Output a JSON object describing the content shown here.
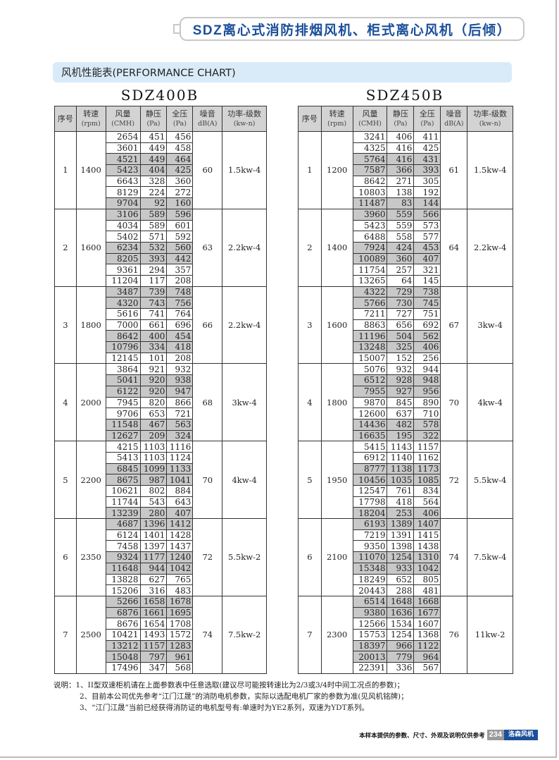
{
  "header": {
    "title": "SDZ离心式消防排烟风机、柜式离心风机（后倾）"
  },
  "section": {
    "title": "风机性能表(PERFORMANCE CHART)"
  },
  "columns": [
    {
      "label": "序号",
      "unit": ""
    },
    {
      "label": "转速",
      "unit": "(rpm)"
    },
    {
      "label": "风量",
      "unit": "(CMH)"
    },
    {
      "label": "静压",
      "unit": "(Pa)"
    },
    {
      "label": "全压",
      "unit": "(Pa)"
    },
    {
      "label": "噪音",
      "unit": "dB(A)"
    },
    {
      "label": "功率-级数",
      "unit": "(kw-n)"
    }
  ],
  "highlight_color": "#c8c8c8",
  "tables": [
    {
      "model": "SDZ400B",
      "groups": [
        {
          "no": "1",
          "rpm": "1400",
          "noise": "60",
          "power": "1.5kw-4",
          "highlighted_rows": [
            2,
            3,
            6
          ],
          "rows": [
            [
              "2654",
              "451",
              "456"
            ],
            [
              "3601",
              "449",
              "458"
            ],
            [
              "4521",
              "449",
              "464"
            ],
            [
              "5423",
              "404",
              "425"
            ],
            [
              "6643",
              "328",
              "360"
            ],
            [
              "8129",
              "224",
              "272"
            ],
            [
              "9704",
              "92",
              "160"
            ]
          ]
        },
        {
          "no": "2",
          "rpm": "1600",
          "noise": "63",
          "power": "2.2kw-4",
          "highlighted_rows": [
            0,
            3,
            4
          ],
          "rows": [
            [
              "3106",
              "589",
              "596"
            ],
            [
              "4034",
              "589",
              "601"
            ],
            [
              "5402",
              "571",
              "592"
            ],
            [
              "6234",
              "532",
              "560"
            ],
            [
              "8205",
              "393",
              "442"
            ],
            [
              "9361",
              "294",
              "357"
            ],
            [
              "11204",
              "117",
              "208"
            ]
          ]
        },
        {
          "no": "3",
          "rpm": "1800",
          "noise": "66",
          "power": "2.2kw-4",
          "highlighted_rows": [
            0,
            1,
            4,
            5
          ],
          "rows": [
            [
              "3487",
              "739",
              "748"
            ],
            [
              "4320",
              "743",
              "756"
            ],
            [
              "5616",
              "741",
              "764"
            ],
            [
              "7000",
              "661",
              "696"
            ],
            [
              "8642",
              "400",
              "454"
            ],
            [
              "10796",
              "334",
              "418"
            ],
            [
              "12145",
              "101",
              "208"
            ]
          ]
        },
        {
          "no": "4",
          "rpm": "2000",
          "noise": "68",
          "power": "3kw-4",
          "highlighted_rows": [
            1,
            2,
            5,
            6
          ],
          "rows": [
            [
              "3864",
              "921",
              "932"
            ],
            [
              "5041",
              "920",
              "938"
            ],
            [
              "6122",
              "920",
              "947"
            ],
            [
              "7945",
              "820",
              "866"
            ],
            [
              "9706",
              "653",
              "721"
            ],
            [
              "11548",
              "467",
              "563"
            ],
            [
              "12627",
              "209",
              "324"
            ]
          ]
        },
        {
          "no": "5",
          "rpm": "2200",
          "noise": "70",
          "power": "4kw-4",
          "highlighted_rows": [
            2,
            3,
            6
          ],
          "rows": [
            [
              "4215",
              "1103",
              "1116"
            ],
            [
              "5413",
              "1103",
              "1124"
            ],
            [
              "6845",
              "1099",
              "1133"
            ],
            [
              "8675",
              "987",
              "1041"
            ],
            [
              "10621",
              "802",
              "884"
            ],
            [
              "11744",
              "543",
              "643"
            ],
            [
              "13239",
              "280",
              "407"
            ]
          ]
        },
        {
          "no": "6",
          "rpm": "2350",
          "noise": "72",
          "power": "5.5kw-2",
          "highlighted_rows": [
            0,
            3,
            4
          ],
          "rows": [
            [
              "4687",
              "1396",
              "1412"
            ],
            [
              "6124",
              "1401",
              "1428"
            ],
            [
              "7458",
              "1397",
              "1437"
            ],
            [
              "9324",
              "1177",
              "1240"
            ],
            [
              "11648",
              "944",
              "1042"
            ],
            [
              "13828",
              "627",
              "765"
            ],
            [
              "15206",
              "316",
              "483"
            ]
          ]
        },
        {
          "no": "7",
          "rpm": "2500",
          "noise": "74",
          "power": "7.5kw-2",
          "highlighted_rows": [
            0,
            1,
            4,
            5
          ],
          "rows": [
            [
              "5266",
              "1658",
              "1678"
            ],
            [
              "6876",
              "1661",
              "1695"
            ],
            [
              "8676",
              "1654",
              "1708"
            ],
            [
              "10421",
              "1493",
              "1572"
            ],
            [
              "13212",
              "1157",
              "1283"
            ],
            [
              "15048",
              "797",
              "961"
            ],
            [
              "17496",
              "347",
              "568"
            ]
          ]
        }
      ]
    },
    {
      "model": "SDZ450B",
      "groups": [
        {
          "no": "1",
          "rpm": "1200",
          "noise": "61",
          "power": "1.5kw-4",
          "highlighted_rows": [
            2,
            3,
            6
          ],
          "rows": [
            [
              "3241",
              "406",
              "411"
            ],
            [
              "4325",
              "416",
              "425"
            ],
            [
              "5764",
              "416",
              "431"
            ],
            [
              "7587",
              "366",
              "393"
            ],
            [
              "8642",
              "271",
              "305"
            ],
            [
              "10803",
              "138",
              "192"
            ],
            [
              "11487",
              "83",
              "144"
            ]
          ]
        },
        {
          "no": "2",
          "rpm": "1400",
          "noise": "64",
          "power": "2.2kw-4",
          "highlighted_rows": [
            0,
            3,
            4
          ],
          "rows": [
            [
              "3960",
              "559",
              "566"
            ],
            [
              "5423",
              "559",
              "573"
            ],
            [
              "6488",
              "558",
              "577"
            ],
            [
              "7924",
              "424",
              "453"
            ],
            [
              "10089",
              "360",
              "407"
            ],
            [
              "11754",
              "257",
              "321"
            ],
            [
              "13265",
              "64",
              "145"
            ]
          ]
        },
        {
          "no": "3",
          "rpm": "1600",
          "noise": "67",
          "power": "3kw-4",
          "highlighted_rows": [
            0,
            1,
            4,
            5
          ],
          "rows": [
            [
              "4322",
              "729",
              "738"
            ],
            [
              "5766",
              "730",
              "745"
            ],
            [
              "7211",
              "727",
              "751"
            ],
            [
              "8863",
              "656",
              "692"
            ],
            [
              "11196",
              "504",
              "562"
            ],
            [
              "13248",
              "325",
              "406"
            ],
            [
              "15007",
              "152",
              "256"
            ]
          ]
        },
        {
          "no": "4",
          "rpm": "1800",
          "noise": "70",
          "power": "4kw-4",
          "highlighted_rows": [
            1,
            2,
            5,
            6
          ],
          "rows": [
            [
              "5076",
              "932",
              "944"
            ],
            [
              "6512",
              "928",
              "948"
            ],
            [
              "7955",
              "927",
              "956"
            ],
            [
              "9870",
              "845",
              "890"
            ],
            [
              "12600",
              "637",
              "710"
            ],
            [
              "14436",
              "482",
              "578"
            ],
            [
              "16635",
              "195",
              "322"
            ]
          ]
        },
        {
          "no": "5",
          "rpm": "1950",
          "noise": "72",
          "power": "5.5kw-4",
          "highlighted_rows": [
            2,
            3,
            6
          ],
          "rows": [
            [
              "5415",
              "1143",
              "1157"
            ],
            [
              "6912",
              "1140",
              "1162"
            ],
            [
              "8777",
              "1138",
              "1173"
            ],
            [
              "10456",
              "1035",
              "1085"
            ],
            [
              "12547",
              "761",
              "834"
            ],
            [
              "17798",
              "418",
              "564"
            ],
            [
              "18204",
              "253",
              "406"
            ]
          ]
        },
        {
          "no": "6",
          "rpm": "2100",
          "noise": "74",
          "power": "7.5kw-4",
          "highlighted_rows": [
            0,
            3,
            4
          ],
          "rows": [
            [
              "6193",
              "1389",
              "1407"
            ],
            [
              "7219",
              "1391",
              "1415"
            ],
            [
              "9350",
              "1398",
              "1438"
            ],
            [
              "11070",
              "1254",
              "1310"
            ],
            [
              "15348",
              "933",
              "1042"
            ],
            [
              "18249",
              "652",
              "805"
            ],
            [
              "20443",
              "288",
              "481"
            ]
          ]
        },
        {
          "no": "7",
          "rpm": "2300",
          "noise": "76",
          "power": "11kw-2",
          "highlighted_rows": [
            0,
            1,
            4,
            5
          ],
          "rows": [
            [
              "6514",
              "1648",
              "1668"
            ],
            [
              "9380",
              "1636",
              "1677"
            ],
            [
              "12566",
              "1534",
              "1607"
            ],
            [
              "15753",
              "1254",
              "1368"
            ],
            [
              "18397",
              "966",
              "1122"
            ],
            [
              "20013",
              "779",
              "964"
            ],
            [
              "22391",
              "336",
              "567"
            ]
          ]
        }
      ]
    }
  ],
  "notes": {
    "prefix": "说明：",
    "items": [
      "1、II型双速柜机请在上面参数表中任意选取(建议尽可能按转速比为2/3或3/4时中间工况点的参数)；",
      "2、目前本公司优先参考“江门江晟”的消防电机参数，实际以选配电机厂家的参数为准(见风机铭牌)；",
      "3、“江门江晟”当前已经获得消防证的电机型号有:单速时为YE2系列，双速为YDT系列。"
    ]
  },
  "footer": {
    "disclaimer": "本样本提供的参数、尺寸、外观及说明仅供参考",
    "page_number": "234",
    "brand": "洛森风机"
  },
  "colors": {
    "title_blue": "#1b4f9a",
    "section_bg": "#d9ebf9",
    "page_num_bg": "#9a9a9a"
  }
}
